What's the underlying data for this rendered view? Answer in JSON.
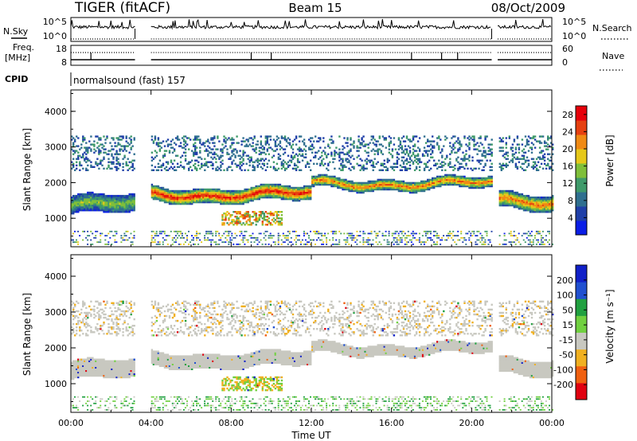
{
  "header": {
    "radar": "TIGER (fitACF)",
    "beam": "Beam 15",
    "date": "08/Oct/2009"
  },
  "strips": {
    "nsky_label": "N.Sky",
    "nsky_ticks": [
      "10^5",
      "10^0"
    ],
    "nsearch_label": "N.Search",
    "nsearch_ticks": [
      "10^5",
      "10^0"
    ],
    "freq_label": "Freq.",
    "freq_unit": "[MHz]",
    "freq_ticks": [
      "18",
      "8"
    ],
    "nave_label": "Nave",
    "nave_ticks": [
      "60",
      "0"
    ],
    "cpid_label": "CPID",
    "cpid_value": "normalsound (fast) 157"
  },
  "chart_data": [
    {
      "type": "heatmap",
      "name": "power-panel",
      "ylabel": "Slant Range [km]",
      "y_ticks": [
        "1000",
        "2000",
        "3000",
        "4000"
      ],
      "ylim": [
        200,
        4600
      ],
      "x_ticks": [
        "00:00",
        "04:00",
        "08:00",
        "12:00",
        "16:00",
        "20:00",
        "00:00"
      ],
      "xlim_hours": [
        0,
        24
      ],
      "colorbar": {
        "label": "Power [dB]",
        "ticks": [
          "4",
          "8",
          "12",
          "16",
          "20",
          "24",
          "28"
        ],
        "range": [
          0,
          30
        ],
        "colors": [
          "#0a1ee6",
          "#1f3fa8",
          "#2f6f8f",
          "#3f9a6a",
          "#7fbf3a",
          "#e6c81a",
          "#f08a14",
          "#e64010",
          "#e6000a"
        ]
      },
      "data_gaps_hours": [
        [
          3.2,
          4.0
        ],
        [
          21.0,
          21.3
        ]
      ],
      "echo_bands": [
        {
          "hour_start": 0.0,
          "hour_end": 3.2,
          "range_center_km": 1350,
          "width_km": 500,
          "peak_db": 16
        },
        {
          "hour_start": 4.0,
          "hour_end": 12.0,
          "range_center_km": 1650,
          "width_km": 400,
          "peak_db": 28
        },
        {
          "hour_start": 12.0,
          "hour_end": 21.0,
          "range_center_km": 1950,
          "width_km": 300,
          "peak_db": 24
        },
        {
          "hour_start": 21.3,
          "hour_end": 24.0,
          "range_center_km": 1450,
          "width_km": 450,
          "peak_db": 24
        }
      ]
    },
    {
      "type": "heatmap",
      "name": "velocity-panel",
      "ylabel": "Slant Range [km]",
      "y_ticks": [
        "1000",
        "2000",
        "3000",
        "4000"
      ],
      "ylim": [
        200,
        4600
      ],
      "x_ticks": [
        "00:00",
        "04:00",
        "08:00",
        "12:00",
        "16:00",
        "20:00",
        "00:00"
      ],
      "xlim_hours": [
        0,
        24
      ],
      "xlabel": "Time UT",
      "colorbar": {
        "label": "Velocity [m s⁻¹]",
        "ticks": [
          "200",
          "100",
          "50",
          "15",
          "-15",
          "-50",
          "-100",
          "-200"
        ],
        "colors": [
          "#1020c8",
          "#2050d0",
          "#20a040",
          "#70d040",
          "#c8c8c0",
          "#f0b020",
          "#f06010",
          "#e00010"
        ]
      },
      "data_gaps_hours": [
        [
          3.2,
          4.0
        ],
        [
          21.0,
          21.3
        ]
      ]
    }
  ]
}
